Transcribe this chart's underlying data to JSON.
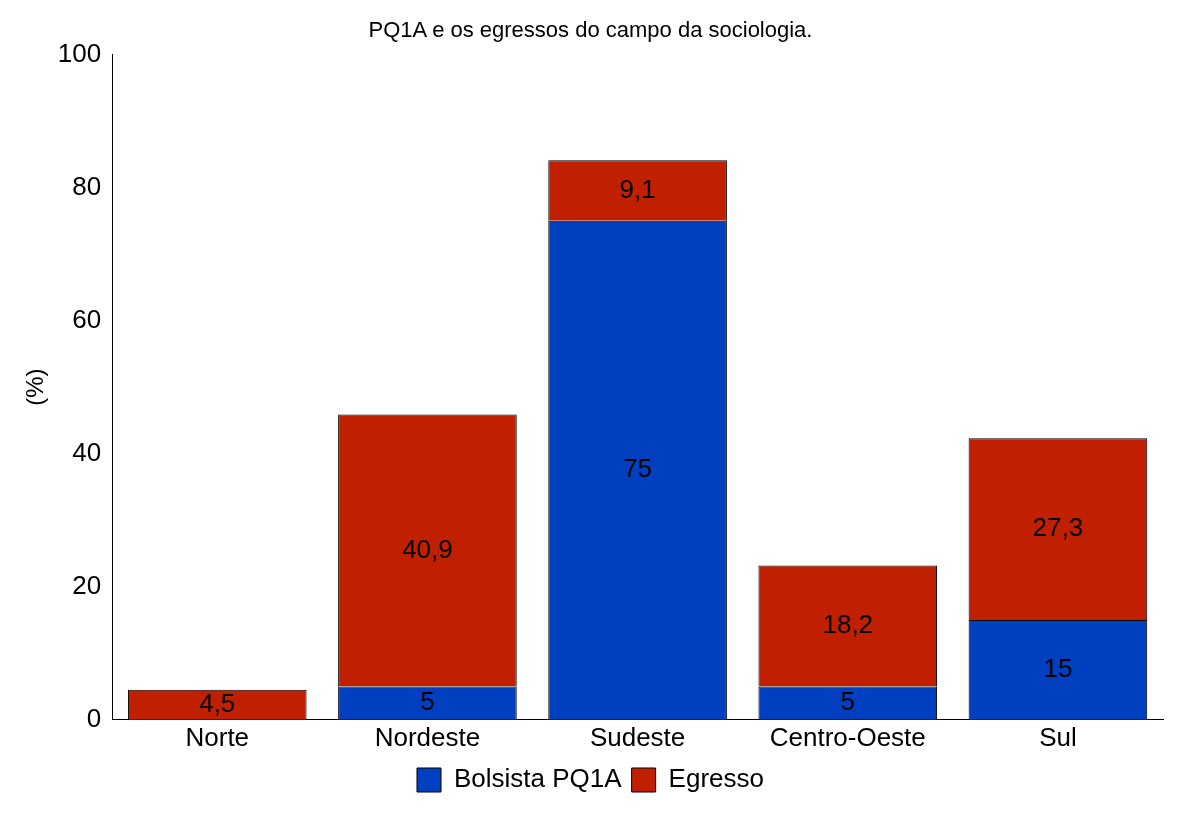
{
  "chart_data": {
    "type": "bar",
    "title": "PQ1A e os egressos do campo da sociologia.",
    "ylabel": "(%)",
    "categories": [
      "Norte",
      "Nordeste",
      "Sudeste",
      "Centro-Oeste",
      "Sul"
    ],
    "stacked": true,
    "series": [
      {
        "name": "Bolsista PQ1A",
        "color": "#0040c0",
        "values": [
          0,
          5,
          75,
          5,
          15
        ],
        "value_labels": [
          null,
          "5",
          "75",
          "5",
          "15"
        ]
      },
      {
        "name": "Egresso",
        "color": "#c02000",
        "values": [
          4.5,
          40.9,
          9.1,
          18.2,
          27.3
        ],
        "value_labels": [
          "4,5",
          "40,9",
          "9,1",
          "18,2",
          "27,3"
        ]
      }
    ],
    "ylim": [
      0,
      100
    ],
    "yticks": [
      0,
      20,
      40,
      60,
      80,
      100
    ],
    "grid": false,
    "legend": "bottom"
  }
}
